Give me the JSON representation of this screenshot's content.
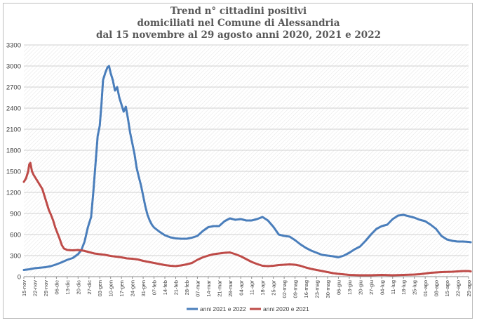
{
  "chart_data": {
    "type": "line",
    "title": "Trend n° cittadini positivi",
    "subtitle": [
      "domiciliati nel Comune di Alessandria",
      "dal 15 novembre al 29 agosto anni 2020, 2021 e 2022"
    ],
    "xlabel": "",
    "ylabel": "",
    "ylim": [
      0,
      3300
    ],
    "yticks": [
      "0",
      "300",
      "600",
      "900",
      "1200",
      "1500",
      "1800",
      "2100",
      "2400",
      "2700",
      "3000",
      "3300"
    ],
    "categories": [
      "15-nov",
      "22-nov",
      "29-nov",
      "06-dic",
      "13-dic",
      "20-dic",
      "27-dic",
      "03-gen",
      "10-gen",
      "17-gen",
      "24-gen",
      "31-gen",
      "07-feb",
      "14-feb",
      "21-feb",
      "28-feb",
      "07-mar",
      "14-mar",
      "21-mar",
      "28-mar",
      "04-apr",
      "11-apr",
      "18-apr",
      "25-apr",
      "02-mag",
      "09-mag",
      "16-mag",
      "23-mag",
      "30-mag",
      "06-giu",
      "13-giu",
      "20-giu",
      "27-giu",
      "04-lug",
      "11-lug",
      "18-lug",
      "25-lug",
      "01-ago",
      "08-ago",
      "15-ago",
      "22-ago",
      "29-ago"
    ],
    "grid": true,
    "legend": "bottom",
    "series": [
      {
        "name": "anni 2021 e 2022",
        "color": "#4a7ebb",
        "points": [
          [
            0,
            95
          ],
          [
            0.5,
            105
          ],
          [
            1,
            120
          ],
          [
            1.5,
            128
          ],
          [
            2,
            135
          ],
          [
            2.5,
            150
          ],
          [
            3,
            175
          ],
          [
            3.5,
            205
          ],
          [
            4,
            240
          ],
          [
            4.5,
            265
          ],
          [
            5,
            320
          ],
          [
            5.3,
            380
          ],
          [
            5.6,
            500
          ],
          [
            5.9,
            700
          ],
          [
            6.2,
            850
          ],
          [
            6.4,
            1200
          ],
          [
            6.6,
            1600
          ],
          [
            6.8,
            2000
          ],
          [
            7,
            2150
          ],
          [
            7.15,
            2450
          ],
          [
            7.3,
            2800
          ],
          [
            7.5,
            2900
          ],
          [
            7.7,
            2980
          ],
          [
            7.85,
            3000
          ],
          [
            8,
            2900
          ],
          [
            8.2,
            2800
          ],
          [
            8.4,
            2650
          ],
          [
            8.6,
            2700
          ],
          [
            8.8,
            2550
          ],
          [
            9,
            2450
          ],
          [
            9.2,
            2350
          ],
          [
            9.4,
            2420
          ],
          [
            9.6,
            2250
          ],
          [
            9.8,
            2050
          ],
          [
            10,
            1900
          ],
          [
            10.2,
            1750
          ],
          [
            10.4,
            1550
          ],
          [
            10.6,
            1420
          ],
          [
            10.8,
            1300
          ],
          [
            11,
            1150
          ],
          [
            11.2,
            1000
          ],
          [
            11.4,
            880
          ],
          [
            11.6,
            800
          ],
          [
            11.8,
            740
          ],
          [
            12,
            700
          ],
          [
            12.5,
            640
          ],
          [
            13,
            590
          ],
          [
            13.5,
            560
          ],
          [
            14,
            545
          ],
          [
            14.5,
            540
          ],
          [
            15,
            540
          ],
          [
            15.5,
            555
          ],
          [
            16,
            580
          ],
          [
            16.5,
            650
          ],
          [
            17,
            705
          ],
          [
            17.5,
            720
          ],
          [
            18,
            720
          ],
          [
            18.5,
            790
          ],
          [
            19,
            830
          ],
          [
            19.5,
            810
          ],
          [
            20,
            820
          ],
          [
            20.5,
            800
          ],
          [
            21,
            800
          ],
          [
            21.5,
            820
          ],
          [
            22,
            850
          ],
          [
            22.5,
            800
          ],
          [
            23,
            710
          ],
          [
            23.5,
            600
          ],
          [
            24,
            580
          ],
          [
            24.5,
            570
          ],
          [
            25,
            520
          ],
          [
            25.5,
            460
          ],
          [
            26,
            410
          ],
          [
            26.5,
            370
          ],
          [
            27,
            340
          ],
          [
            27.5,
            310
          ],
          [
            28,
            300
          ],
          [
            28.5,
            290
          ],
          [
            29,
            275
          ],
          [
            29.5,
            300
          ],
          [
            30,
            340
          ],
          [
            30.5,
            390
          ],
          [
            31,
            430
          ],
          [
            31.5,
            510
          ],
          [
            32,
            600
          ],
          [
            32.5,
            680
          ],
          [
            33,
            720
          ],
          [
            33.5,
            740
          ],
          [
            34,
            820
          ],
          [
            34.5,
            870
          ],
          [
            35,
            880
          ],
          [
            35.5,
            860
          ],
          [
            36,
            840
          ],
          [
            36.5,
            810
          ],
          [
            37,
            790
          ],
          [
            37.5,
            740
          ],
          [
            38,
            680
          ],
          [
            38.5,
            580
          ],
          [
            39,
            530
          ],
          [
            39.5,
            510
          ],
          [
            40,
            500
          ],
          [
            40.5,
            500
          ],
          [
            41,
            495
          ],
          [
            41.2,
            490
          ]
        ]
      },
      {
        "name": "anni 2020 e 2021",
        "color": "#be4b48",
        "points": [
          [
            0,
            1350
          ],
          [
            0.2,
            1400
          ],
          [
            0.4,
            1500
          ],
          [
            0.5,
            1600
          ],
          [
            0.6,
            1620
          ],
          [
            0.75,
            1500
          ],
          [
            0.9,
            1450
          ],
          [
            1.1,
            1400
          ],
          [
            1.3,
            1350
          ],
          [
            1.5,
            1300
          ],
          [
            1.7,
            1250
          ],
          [
            1.9,
            1150
          ],
          [
            2.1,
            1050
          ],
          [
            2.3,
            950
          ],
          [
            2.5,
            880
          ],
          [
            2.7,
            800
          ],
          [
            2.9,
            700
          ],
          [
            3.1,
            620
          ],
          [
            3.3,
            540
          ],
          [
            3.5,
            450
          ],
          [
            3.7,
            400
          ],
          [
            4,
            380
          ],
          [
            4.5,
            375
          ],
          [
            5,
            380
          ],
          [
            5.5,
            370
          ],
          [
            6,
            350
          ],
          [
            6.5,
            330
          ],
          [
            7,
            320
          ],
          [
            7.5,
            310
          ],
          [
            8,
            295
          ],
          [
            8.5,
            285
          ],
          [
            9,
            275
          ],
          [
            9.5,
            260
          ],
          [
            10,
            255
          ],
          [
            10.5,
            245
          ],
          [
            11,
            225
          ],
          [
            11.5,
            210
          ],
          [
            12,
            195
          ],
          [
            12.5,
            180
          ],
          [
            13,
            165
          ],
          [
            13.5,
            155
          ],
          [
            14,
            150
          ],
          [
            14.5,
            160
          ],
          [
            15,
            175
          ],
          [
            15.5,
            195
          ],
          [
            16,
            240
          ],
          [
            16.5,
            275
          ],
          [
            17,
            300
          ],
          [
            17.5,
            320
          ],
          [
            18,
            330
          ],
          [
            18.5,
            340
          ],
          [
            19,
            345
          ],
          [
            19.5,
            320
          ],
          [
            20,
            290
          ],
          [
            20.5,
            250
          ],
          [
            21,
            210
          ],
          [
            21.5,
            180
          ],
          [
            22,
            155
          ],
          [
            22.5,
            150
          ],
          [
            23,
            155
          ],
          [
            23.5,
            165
          ],
          [
            24,
            170
          ],
          [
            24.5,
            175
          ],
          [
            25,
            170
          ],
          [
            25.5,
            155
          ],
          [
            26,
            130
          ],
          [
            26.5,
            110
          ],
          [
            27,
            95
          ],
          [
            27.5,
            80
          ],
          [
            28,
            65
          ],
          [
            28.5,
            50
          ],
          [
            29,
            40
          ],
          [
            29.5,
            32
          ],
          [
            30,
            25
          ],
          [
            30.5,
            22
          ],
          [
            31,
            20
          ],
          [
            31.5,
            20
          ],
          [
            32,
            20
          ],
          [
            32.5,
            22
          ],
          [
            33,
            25
          ],
          [
            33.5,
            22
          ],
          [
            34,
            20
          ],
          [
            34.5,
            22
          ],
          [
            35,
            25
          ],
          [
            35.5,
            28
          ],
          [
            36,
            30
          ],
          [
            36.5,
            35
          ],
          [
            37,
            45
          ],
          [
            37.5,
            55
          ],
          [
            38,
            60
          ],
          [
            38.5,
            65
          ],
          [
            39,
            68
          ],
          [
            39.5,
            70
          ],
          [
            40,
            75
          ],
          [
            40.5,
            80
          ],
          [
            41,
            80
          ],
          [
            41.2,
            75
          ]
        ]
      }
    ]
  }
}
